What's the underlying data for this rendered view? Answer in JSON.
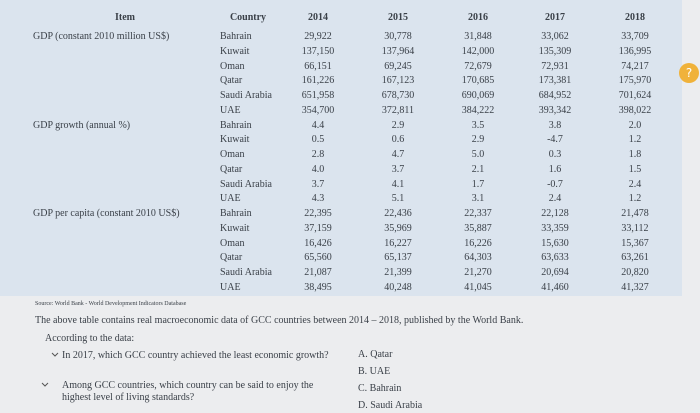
{
  "table": {
    "columns": [
      "Item",
      "Country",
      "2014",
      "2015",
      "2016",
      "2017",
      "2018"
    ],
    "groups": [
      {
        "item": "GDP (constant 2010 million US$)",
        "rows": [
          {
            "country": "Bahrain",
            "values": [
              "29,922",
              "30,778",
              "31,848",
              "33,062",
              "33,709"
            ]
          },
          {
            "country": "Kuwait",
            "values": [
              "137,150",
              "137,964",
              "142,000",
              "135,309",
              "136,995"
            ]
          },
          {
            "country": "Oman",
            "values": [
              "66,151",
              "69,245",
              "72,679",
              "72,931",
              "74,217"
            ]
          },
          {
            "country": "Qatar",
            "values": [
              "161,226",
              "167,123",
              "170,685",
              "173,381",
              "175,970"
            ]
          },
          {
            "country": "Saudi Arabia",
            "values": [
              "651,958",
              "678,730",
              "690,069",
              "684,952",
              "701,624"
            ]
          },
          {
            "country": "UAE",
            "values": [
              "354,700",
              "372,811",
              "384,222",
              "393,342",
              "398,022"
            ]
          }
        ]
      },
      {
        "item": "GDP growth (annual %)",
        "rows": [
          {
            "country": "Bahrain",
            "values": [
              "4.4",
              "2.9",
              "3.5",
              "3.8",
              "2.0"
            ]
          },
          {
            "country": "Kuwait",
            "values": [
              "0.5",
              "0.6",
              "2.9",
              "-4.7",
              "1.2"
            ]
          },
          {
            "country": "Oman",
            "values": [
              "2.8",
              "4.7",
              "5.0",
              "0.3",
              "1.8"
            ]
          },
          {
            "country": "Qatar",
            "values": [
              "4.0",
              "3.7",
              "2.1",
              "1.6",
              "1.5"
            ]
          },
          {
            "country": "Saudi Arabia",
            "values": [
              "3.7",
              "4.1",
              "1.7",
              "-0.7",
              "2.4"
            ]
          },
          {
            "country": "UAE",
            "values": [
              "4.3",
              "5.1",
              "3.1",
              "2.4",
              "1.2"
            ]
          }
        ]
      },
      {
        "item": "GDP per capita (constant 2010 US$)",
        "rows": [
          {
            "country": "Bahrain",
            "values": [
              "22,395",
              "22,436",
              "22,337",
              "22,128",
              "21,478"
            ]
          },
          {
            "country": "Kuwait",
            "values": [
              "37,159",
              "35,969",
              "35,887",
              "33,359",
              "33,112"
            ]
          },
          {
            "country": "Oman",
            "values": [
              "16,426",
              "16,227",
              "16,226",
              "15,630",
              "15,367"
            ]
          },
          {
            "country": "Qatar",
            "values": [
              "65,560",
              "65,137",
              "64,303",
              "63,633",
              "63,261"
            ]
          },
          {
            "country": "Saudi Arabia",
            "values": [
              "21,087",
              "21,399",
              "21,270",
              "20,694",
              "20,820"
            ]
          },
          {
            "country": "UAE",
            "values": [
              "38,495",
              "40,248",
              "41,045",
              "41,460",
              "41,327"
            ]
          }
        ]
      }
    ]
  },
  "source": "Source: World Bank - World Development Indicators Database",
  "description": "The above table contains real macroeconomic data of GCC countries between 2014 – 2018, published by the World Bank.",
  "prompt": "According to the data:",
  "questions": [
    "In 2017, which GCC country achieved the least economic growth?",
    "Among GCC countries, which country can be said to enjoy the highest level of living standards?"
  ],
  "options": [
    "A. Qatar",
    "B. UAE",
    "C. Bahrain",
    "D. Saudi Arabia"
  ]
}
